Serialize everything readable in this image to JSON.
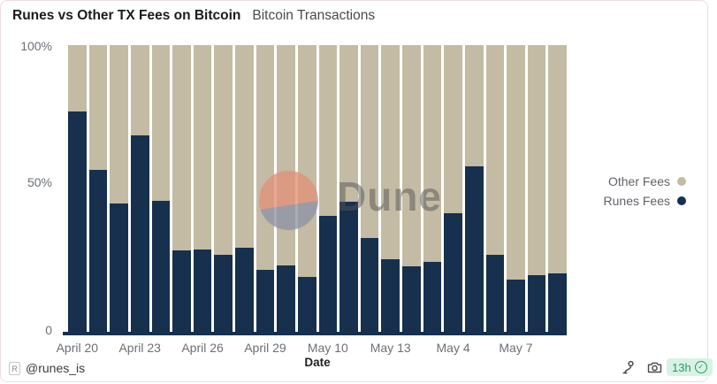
{
  "header": {
    "title": "Runes vs Other TX Fees on Bitcoin",
    "subtitle": "Bitcoin Transactions"
  },
  "chart_data": {
    "type": "bar",
    "stacked": true,
    "percent_stacked": true,
    "title": "Runes vs Other TX Fees on Bitcoin",
    "subtitle": "Bitcoin Transactions",
    "xlabel": "Date",
    "ylabel": "",
    "ylim": [
      0,
      100
    ],
    "ytick_labels": [
      "100%",
      "50%",
      "0"
    ],
    "grid": false,
    "legend_position": "right-middle",
    "categories": [
      "April 20",
      "April 21",
      "April 22",
      "April 23",
      "April 24",
      "April 25",
      "April 26",
      "April 27",
      "April 28",
      "April 29",
      "April 30",
      "May 1",
      "May 10",
      "May 11",
      "May 12",
      "May 13",
      "May 2",
      "May 3",
      "May 4",
      "May 5",
      "May 6",
      "May 7",
      "May 8",
      "May 9"
    ],
    "xtick_labels_shown": [
      "April 20",
      "April 23",
      "April 26",
      "April 29",
      "May 10",
      "May 13",
      "May 4",
      "May 7"
    ],
    "xtick_shown_every": 3,
    "series": [
      {
        "name": "Runes Fees",
        "color": "#16304e",
        "values": [
          77,
          56.5,
          45,
          68.5,
          46,
          28.5,
          29,
          27,
          29.5,
          22,
          23.5,
          19.5,
          40.5,
          45.5,
          33,
          25.5,
          23,
          24.5,
          41.5,
          58,
          27,
          18.5,
          20,
          20.5
        ]
      },
      {
        "name": "Other Fees",
        "color": "#c3bba3",
        "values": [
          23,
          43.5,
          55,
          31.5,
          54,
          71.5,
          71,
          73,
          70.5,
          78,
          76.5,
          80.5,
          59.5,
          54.5,
          67,
          74.5,
          77,
          75.5,
          58.5,
          42,
          73,
          81.5,
          80,
          79.5
        ]
      }
    ]
  },
  "legend": {
    "items": [
      {
        "label": "Other Fees",
        "color": "#c3bba3"
      },
      {
        "label": "Runes Fees",
        "color": "#16304e"
      }
    ]
  },
  "watermark": {
    "text": "Dune",
    "circle_colors": [
      "#e29079",
      "#8d93a4"
    ]
  },
  "footer": {
    "logo_letter": "R",
    "handle": "@runes_is",
    "icons": [
      "fork-icon",
      "camera-icon"
    ],
    "badge": {
      "text": "13h",
      "check": "✓",
      "text_color": "#259c66",
      "bg_color": "#d9f2e4"
    }
  },
  "colors": {
    "runes_fees": "#16304e",
    "other_fees": "#c3bba3",
    "axis_text": "#6b7076",
    "card_border": "#f0dce2"
  }
}
